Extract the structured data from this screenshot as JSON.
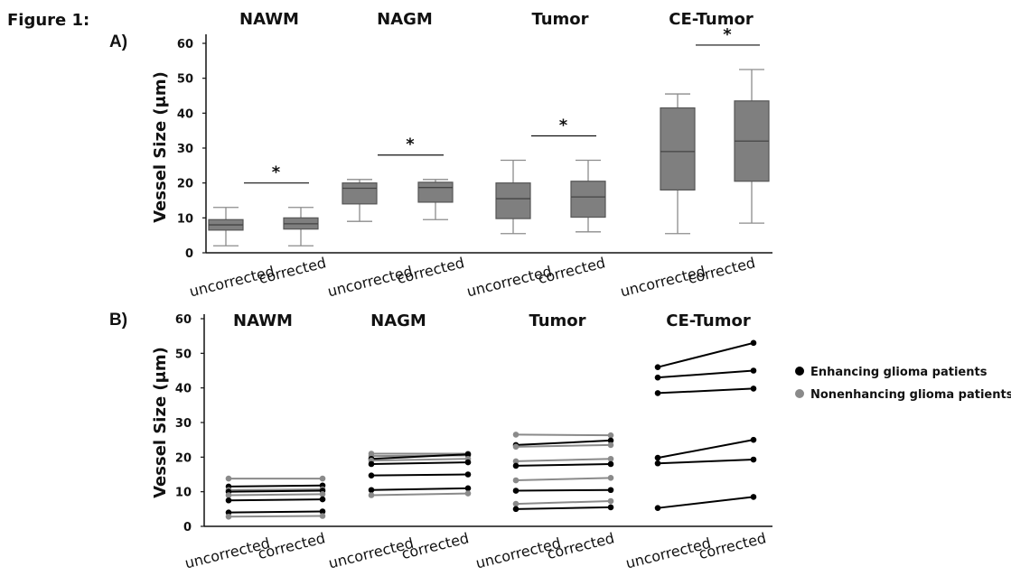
{
  "figure_label": "Figure 1:",
  "chart_data": [
    {
      "panel": "A)",
      "type": "box",
      "ylabel": "Vessel Size (μm)",
      "ylim": [
        0,
        60
      ],
      "yticks": [
        0,
        10,
        20,
        30,
        40,
        50,
        60
      ],
      "categories": [
        "uncorrected",
        "corrected"
      ],
      "box_color": "#7f7f7f",
      "groups": [
        {
          "name": "NAWM",
          "significance": "*",
          "boxes": [
            {
              "label": "uncorrected",
              "min": 2,
              "q1": 6.5,
              "median": 8,
              "q3": 9.5,
              "max": 13
            },
            {
              "label": "corrected",
              "min": 2,
              "q1": 6.8,
              "median": 8.3,
              "q3": 10,
              "max": 13
            }
          ]
        },
        {
          "name": "NAGM",
          "significance": "*",
          "boxes": [
            {
              "label": "uncorrected",
              "min": 9,
              "q1": 14,
              "median": 18.5,
              "q3": 20,
              "max": 21
            },
            {
              "label": "corrected",
              "min": 9.5,
              "q1": 14.5,
              "median": 18.7,
              "q3": 20.2,
              "max": 21
            }
          ]
        },
        {
          "name": "Tumor",
          "significance": "*",
          "boxes": [
            {
              "label": "uncorrected",
              "min": 5.5,
              "q1": 9.8,
              "median": 15.5,
              "q3": 20,
              "max": 26.5
            },
            {
              "label": "corrected",
              "min": 6,
              "q1": 10.2,
              "median": 16,
              "q3": 20.5,
              "max": 26.5
            }
          ]
        },
        {
          "name": "CE-Tumor",
          "significance": "*",
          "boxes": [
            {
              "label": "uncorrected",
              "min": 5.5,
              "q1": 18,
              "median": 29,
              "q3": 41.5,
              "max": 45.5
            },
            {
              "label": "corrected",
              "min": 8.5,
              "q1": 20.5,
              "median": 32,
              "q3": 43.5,
              "max": 52.5
            }
          ]
        }
      ]
    },
    {
      "panel": "B)",
      "type": "line",
      "ylabel": "Vessel Size (μm)",
      "ylim": [
        0,
        60
      ],
      "yticks": [
        0,
        10,
        20,
        30,
        40,
        50,
        60
      ],
      "categories": [
        "uncorrected",
        "corrected"
      ],
      "legend": [
        {
          "label": "Enhancing glioma patients",
          "color": "#000000"
        },
        {
          "label": "Nonenhancing glioma patients",
          "color": "#8a8a8a"
        }
      ],
      "groups": [
        {
          "name": "NAWM",
          "series": [
            {
              "type": "nonenhancing",
              "values": [
                13.8,
                13.8
              ]
            },
            {
              "type": "enhancing",
              "values": [
                11.5,
                11.8
              ]
            },
            {
              "type": "nonenhancing",
              "values": [
                10.5,
                10.7
              ]
            },
            {
              "type": "enhancing",
              "values": [
                10,
                10.3
              ]
            },
            {
              "type": "nonenhancing",
              "values": [
                9,
                9.3
              ]
            },
            {
              "type": "enhancing",
              "values": [
                7.5,
                7.8
              ]
            },
            {
              "type": "enhancing",
              "values": [
                4,
                4.3
              ]
            },
            {
              "type": "nonenhancing",
              "values": [
                2.8,
                3
              ]
            }
          ]
        },
        {
          "name": "NAGM",
          "series": [
            {
              "type": "nonenhancing",
              "values": [
                21,
                21
              ]
            },
            {
              "type": "nonenhancing",
              "values": [
                20.3,
                20.5
              ]
            },
            {
              "type": "enhancing",
              "values": [
                19.5,
                20.8
              ]
            },
            {
              "type": "nonenhancing",
              "values": [
                19,
                19.5
              ]
            },
            {
              "type": "enhancing",
              "values": [
                18,
                18.5
              ]
            },
            {
              "type": "enhancing",
              "values": [
                14.7,
                15
              ]
            },
            {
              "type": "enhancing",
              "values": [
                10.5,
                11
              ]
            },
            {
              "type": "nonenhancing",
              "values": [
                9,
                9.5
              ]
            }
          ]
        },
        {
          "name": "Tumor",
          "series": [
            {
              "type": "nonenhancing",
              "values": [
                26.5,
                26.3
              ]
            },
            {
              "type": "enhancing",
              "values": [
                23.5,
                24.8
              ]
            },
            {
              "type": "nonenhancing",
              "values": [
                23,
                23.5
              ]
            },
            {
              "type": "nonenhancing",
              "values": [
                18.8,
                19.5
              ]
            },
            {
              "type": "enhancing",
              "values": [
                17.5,
                18
              ]
            },
            {
              "type": "nonenhancing",
              "values": [
                13.3,
                14
              ]
            },
            {
              "type": "enhancing",
              "values": [
                10.3,
                10.5
              ]
            },
            {
              "type": "nonenhancing",
              "values": [
                6.5,
                7.3
              ]
            },
            {
              "type": "enhancing",
              "values": [
                5,
                5.5
              ]
            }
          ]
        },
        {
          "name": "CE-Tumor",
          "series": [
            {
              "type": "enhancing",
              "values": [
                46,
                53
              ]
            },
            {
              "type": "enhancing",
              "values": [
                43,
                45
              ]
            },
            {
              "type": "enhancing",
              "values": [
                38.5,
                39.8
              ]
            },
            {
              "type": "enhancing",
              "values": [
                19.8,
                25
              ]
            },
            {
              "type": "enhancing",
              "values": [
                18.2,
                19.3
              ]
            },
            {
              "type": "enhancing",
              "values": [
                5.3,
                8.5
              ]
            }
          ]
        }
      ]
    }
  ]
}
